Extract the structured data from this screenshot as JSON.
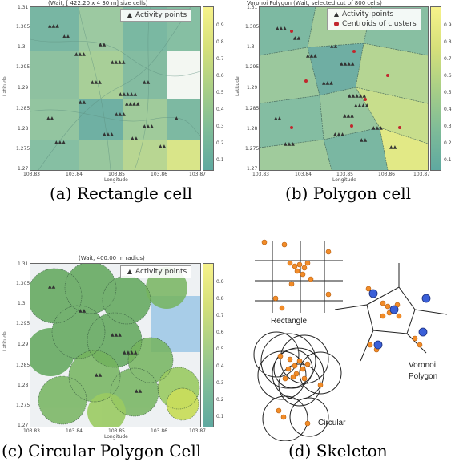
{
  "panels": [
    {
      "title": "(Wait, [ 422.20 x 4 30 m] size cells)",
      "legend": [
        {
          "marker": "▲",
          "label": "Activity points"
        }
      ],
      "ylabel": "Latitude",
      "xlabel": "Longitude",
      "yticks": [
        "1.31",
        "1.305",
        "1.3",
        "1.295",
        "1.29",
        "1.285",
        "1.28",
        "1.275",
        "1.27"
      ],
      "xticks": [
        "103.83",
        "103.84",
        "103.85",
        "103.86",
        "103.87"
      ],
      "cbticks": [
        "0.9",
        "0.8",
        "0.7",
        "0.6",
        "0.5",
        "0.4",
        "0.3",
        "0.2",
        "0.1"
      ],
      "caption": "(a) Rectangle cell"
    },
    {
      "title": "Voronoi Polygon (Wait, selected cut of 800 cells)",
      "legend": [
        {
          "marker": "▲",
          "label": "Activity points"
        },
        {
          "marker": "●",
          "label": "Centroids of clusters"
        }
      ],
      "ylabel": "Latitude",
      "xlabel": "Longitude",
      "yticks": [
        "1.31",
        "1.305",
        "1.3",
        "1.295",
        "1.29",
        "1.285",
        "1.28",
        "1.275",
        "1.27"
      ],
      "xticks": [
        "103.83",
        "103.84",
        "103.85",
        "103.86",
        "103.87"
      ],
      "cbticks": [
        "0.9",
        "0.8",
        "0.7",
        "0.6",
        "0.5",
        "0.4",
        "0.3",
        "0.2",
        "0.1"
      ],
      "caption": "(b) Polygon cell"
    },
    {
      "title": "(Wait, 400.00 m radius)",
      "legend": [
        {
          "marker": "▲",
          "label": "Activity points"
        }
      ],
      "ylabel": "Latitude",
      "xlabel": "Longitude",
      "yticks": [
        "1.31",
        "1.305",
        "1.3",
        "1.295",
        "1.29",
        "1.285",
        "1.28",
        "1.275",
        "1.27"
      ],
      "xticks": [
        "103.83",
        "103.84",
        "103.85",
        "103.86",
        "103.87"
      ],
      "cbticks": [
        "0.9",
        "0.8",
        "0.7",
        "0.6",
        "0.5",
        "0.4",
        "0.3",
        "0.2",
        "0.1"
      ],
      "caption": "(c) Circular Polygon Cell"
    }
  ],
  "skeleton": {
    "labels": {
      "rectangle": "Rectangle",
      "voronoi_1": "Voronoi",
      "voronoi_2": "Polygon",
      "circular": "Circular"
    },
    "caption": "(d) Skeleton",
    "colors": {
      "points": "#f28c28",
      "centroids": "#3a5fd8"
    }
  },
  "colors": {
    "map_low": "#5fa9a0",
    "map_high": "#f7f28a"
  }
}
